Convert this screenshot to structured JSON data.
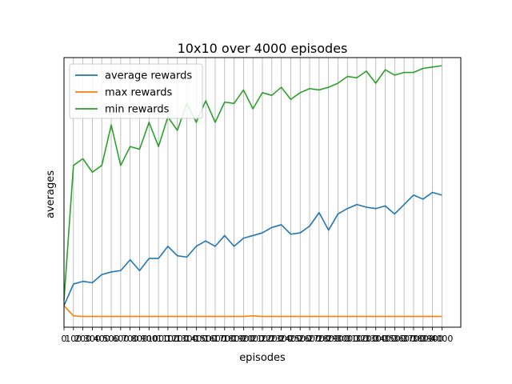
{
  "chart_data": {
    "type": "line",
    "title": "10x10 over 4000 episodes",
    "xlabel": "episodes",
    "ylabel": "averages",
    "x": [
      0,
      100,
      200,
      300,
      400,
      500,
      600,
      700,
      800,
      900,
      1000,
      1100,
      1200,
      1300,
      1400,
      1500,
      1600,
      1700,
      1800,
      1900,
      2000,
      2100,
      2200,
      2300,
      2400,
      2500,
      2600,
      2700,
      2800,
      2900,
      3000,
      3100,
      3200,
      3300,
      3400,
      3500,
      3600,
      3700,
      3800,
      3900,
      4000
    ],
    "tick_labels": [
      "0",
      "100",
      "200",
      "300",
      "400",
      "500",
      "600",
      "700",
      "800",
      "900",
      "1000",
      "1100",
      "1200",
      "1300",
      "1400",
      "1500",
      "1600",
      "1700",
      "1800",
      "1900",
      "2000",
      "2100",
      "2200",
      "2300",
      "2400",
      "2500",
      "2600",
      "2700",
      "2800",
      "2900",
      "3000",
      "3100",
      "3200",
      "3300",
      "3400",
      "3500",
      "3600",
      "3700",
      "3800",
      "3900",
      "4000"
    ],
    "xlim": [
      0,
      4200
    ],
    "ylim": [
      0,
      100
    ],
    "grid": "vertical",
    "legend_position": "top-left",
    "series": [
      {
        "name": "average rewards",
        "color": "#1f77b4",
        "values": [
          8,
          16,
          17,
          16.5,
          19.5,
          20.5,
          21,
          25,
          21,
          25.5,
          25.5,
          30,
          26.5,
          26,
          30,
          32,
          30,
          34,
          30,
          33,
          34,
          35,
          37,
          38,
          34.5,
          35,
          37.5,
          42.5,
          36,
          42,
          44,
          45.5,
          44.5,
          44,
          45,
          42,
          45.5,
          49,
          47.5,
          50,
          49
        ]
      },
      {
        "name": "max rewards",
        "color": "#ff7f0e",
        "values": [
          8,
          4.2,
          4,
          4,
          4,
          4,
          4,
          4,
          4,
          4,
          4,
          4,
          4,
          4,
          4,
          4,
          4,
          4,
          4,
          4,
          4.2,
          4,
          4,
          4,
          4,
          4,
          4,
          4,
          4,
          4,
          4,
          4,
          4,
          4,
          4,
          4,
          4,
          4,
          4,
          4,
          4
        ]
      },
      {
        "name": "min rewards",
        "color": "#2ca02c",
        "values": [
          10,
          60,
          62.5,
          57.5,
          60,
          75,
          60,
          67,
          66,
          76,
          67,
          78,
          73,
          83,
          76,
          84,
          76,
          83.5,
          83,
          88,
          81,
          87,
          86,
          89,
          84.5,
          87,
          88.5,
          88,
          89,
          90.5,
          93,
          92.5,
          95,
          90.5,
          95.5,
          93.5,
          94.5,
          94.5,
          96,
          96.5,
          97
        ]
      }
    ]
  }
}
